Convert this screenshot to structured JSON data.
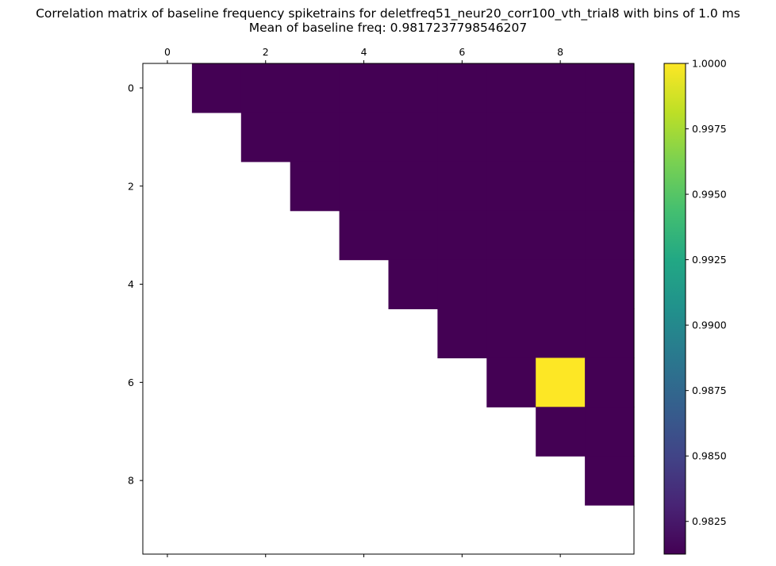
{
  "chart_data": {
    "type": "heatmap",
    "title": "Correlation matrix of baseline frequency spiketrains for deletfreq51_neur20_corr100_vth_trial8 with bins of 1.0 ms",
    "subtitle": "Mean of baseline freq: 0.9817237798546207",
    "rows": 10,
    "cols": 10,
    "x_ticks": [
      0,
      2,
      4,
      6,
      8
    ],
    "y_ticks": [
      0,
      2,
      4,
      6,
      8
    ],
    "x_tick_position": "top",
    "masked": "diagonal and lower triangle (blank)",
    "values": [
      [
        null,
        0.98125,
        0.98125,
        0.98125,
        0.98125,
        0.98125,
        0.98125,
        0.98125,
        0.98125,
        0.98125
      ],
      [
        null,
        null,
        0.98125,
        0.98125,
        0.98125,
        0.98125,
        0.98125,
        0.98125,
        0.98125,
        0.98125
      ],
      [
        null,
        null,
        null,
        0.98125,
        0.98125,
        0.98125,
        0.98125,
        0.98125,
        0.98125,
        0.98125
      ],
      [
        null,
        null,
        null,
        null,
        0.98125,
        0.98125,
        0.98125,
        0.98125,
        0.98125,
        0.98125
      ],
      [
        null,
        null,
        null,
        null,
        null,
        0.98125,
        0.98125,
        0.98125,
        0.98125,
        0.98125
      ],
      [
        null,
        null,
        null,
        null,
        null,
        null,
        0.98125,
        0.98125,
        0.98125,
        0.98125
      ],
      [
        null,
        null,
        null,
        null,
        null,
        null,
        null,
        0.98125,
        1.0,
        0.98125
      ],
      [
        null,
        null,
        null,
        null,
        null,
        null,
        null,
        null,
        0.98125,
        0.98125
      ],
      [
        null,
        null,
        null,
        null,
        null,
        null,
        null,
        null,
        null,
        0.98125
      ],
      [
        null,
        null,
        null,
        null,
        null,
        null,
        null,
        null,
        null,
        null
      ]
    ],
    "colorbar": {
      "colormap": "viridis",
      "min": 0.98125,
      "max": 1.0,
      "ticks": [
        0.9825,
        0.985,
        0.9875,
        0.99,
        0.9925,
        0.995,
        0.9975,
        1.0
      ],
      "tick_labels": [
        "0.9825",
        "0.9850",
        "0.9875",
        "0.9900",
        "0.9925",
        "0.9950",
        "0.9975",
        "1.0000"
      ]
    }
  }
}
